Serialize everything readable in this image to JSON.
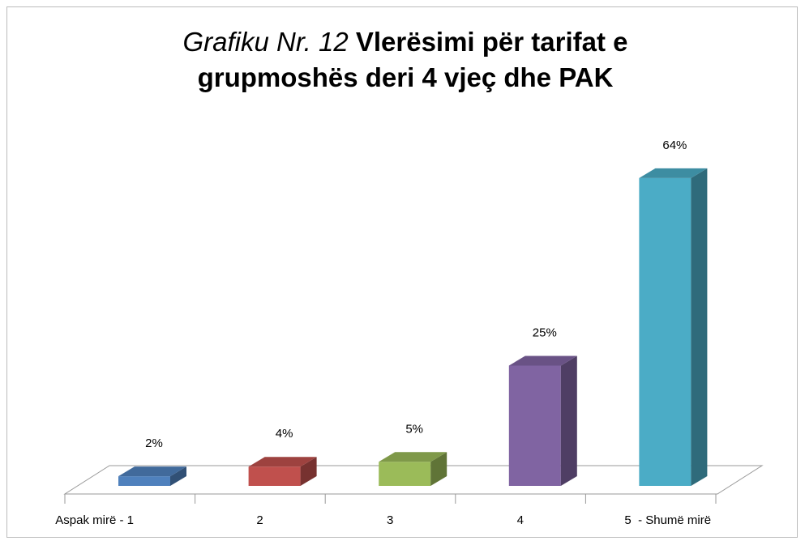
{
  "chart_data": {
    "type": "bar3d",
    "title_prefix": "Grafiku  Nr. 12",
    "title": "Vlerësimi për tarifat e grupmoshës deri 4 vjeç dhe PAK",
    "categories": [
      "Aspak mirë - 1",
      "2",
      "3",
      "4",
      "5  - Shumë mirë"
    ],
    "values": [
      2,
      4,
      5,
      25,
      64
    ],
    "value_labels": [
      "2%",
      "4%",
      "5%",
      "25%",
      "64%"
    ],
    "colors": [
      "#4f81bd",
      "#c0504d",
      "#9bbb59",
      "#8064a2",
      "#4bacc6"
    ]
  }
}
